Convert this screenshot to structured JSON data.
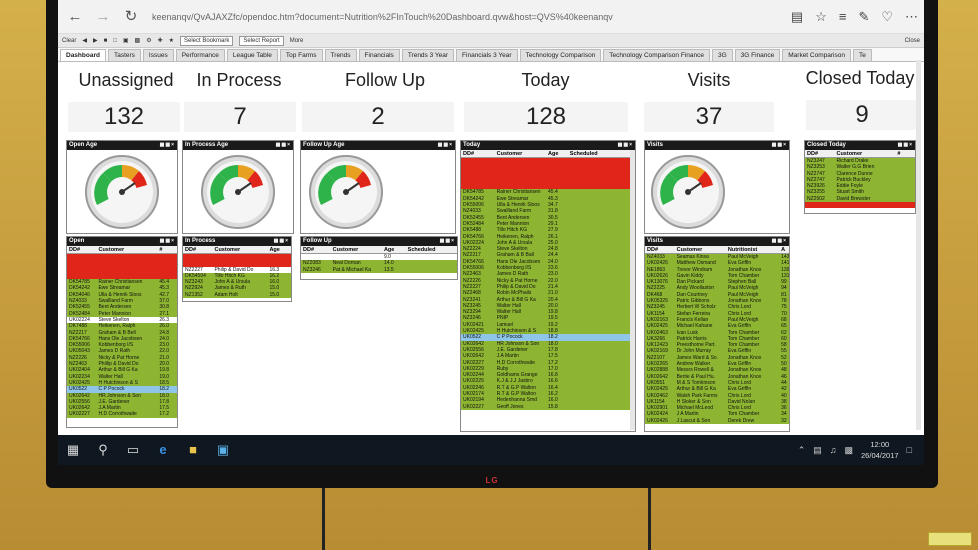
{
  "browser": {
    "url": "keenanqv/QvAJAXZfc/opendoc.htm?document=Nutrition%2FInTouch%20Dashboard.qvw&host=QVS%40keenanqv"
  },
  "toolbar": {
    "clear_label": "Clear",
    "bookmark_select": "Select Bookmark",
    "report_select": "Select Report",
    "more_label": "More",
    "close_label": "Close"
  },
  "tabs": [
    "Dashboard",
    "Tasters",
    "Issues",
    "Performance",
    "League Table",
    "Top Farms",
    "Trends",
    "Financials",
    "Trends 3 Year",
    "Financials 3 Year",
    "Technology Comparison",
    "Technology Comparison Finance",
    "3G",
    "3G Finance",
    "Market Comparison",
    "Te"
  ],
  "kpis": [
    {
      "label": "Unassigned",
      "value": "132"
    },
    {
      "label": "In Process",
      "value": "7"
    },
    {
      "label": "Follow Up",
      "value": "2"
    },
    {
      "label": "Today",
      "value": "128"
    },
    {
      "label": "Visits",
      "value": "37"
    },
    {
      "label": "Closed Today",
      "value": "9"
    }
  ],
  "gauges": {
    "open": {
      "title": "Open Age"
    },
    "inprocess": {
      "title": "In Process Age"
    },
    "followup": {
      "title": "Follow Up Age"
    },
    "visits": {
      "title": "Visits"
    }
  },
  "tables": {
    "open": {
      "title": "Open",
      "headers": [
        "DD#",
        "Customer",
        "#"
      ],
      "rows": [
        {
          "c": "r",
          "v": [
            "",
            "",
            ""
          ]
        },
        {
          "c": "r",
          "v": [
            "",
            "",
            ""
          ]
        },
        {
          "c": "r",
          "v": [
            "",
            "",
            ""
          ]
        },
        {
          "c": "r",
          "v": [
            "",
            "",
            ""
          ]
        },
        {
          "c": "g",
          "v": [
            "DK54785",
            "Rainer Christiansen",
            "45.4"
          ]
        },
        {
          "c": "g",
          "v": [
            "DK54242",
            "Ewe Streamar",
            "45.3"
          ]
        },
        {
          "c": "g",
          "v": [
            "DK54046",
            "Ulla & Henrik Sloos",
            "42.7"
          ]
        },
        {
          "c": "g",
          "v": [
            "NZ4033",
            "Swallland Farm",
            "37.0"
          ]
        },
        {
          "c": "g",
          "v": [
            "DK52455",
            "Bent Andersen",
            "30.8"
          ]
        },
        {
          "c": "g",
          "v": [
            "DK52484",
            "Peter Mannion",
            "27.1"
          ]
        },
        {
          "c": "w",
          "v": [
            "UK02224",
            "Steve Skelton",
            "26.3"
          ]
        },
        {
          "c": "g",
          "v": [
            "DK7488",
            "Heikenen, Ralph",
            "26.0"
          ]
        },
        {
          "c": "g",
          "v": [
            "NZ2217",
            "Graham & B Bell",
            "24.8"
          ]
        },
        {
          "c": "g",
          "v": [
            "DK54766",
            "Hans Ole Jacobsen",
            "24.0"
          ]
        },
        {
          "c": "g",
          "v": [
            "DK55006",
            "Kobbenborg I/S",
            "23.0"
          ]
        },
        {
          "c": "g",
          "v": [
            "UK05043",
            "James D Rath",
            "22.0"
          ]
        },
        {
          "c": "g",
          "v": [
            "NZ2226",
            "Nicky & Pat Horne",
            "21.0"
          ]
        },
        {
          "c": "g",
          "v": [
            "NZ2463",
            "Phillip & David Do",
            "20.0"
          ]
        },
        {
          "c": "g",
          "v": [
            "UK02404",
            "Arthur & Bill G Ka",
            "19.8"
          ]
        },
        {
          "c": "g",
          "v": [
            "UK02234",
            "Walter Hall",
            "19.0"
          ]
        },
        {
          "c": "g",
          "v": [
            "UK02425",
            "H Hutchinson & S",
            "18.5"
          ]
        },
        {
          "c": "b",
          "v": [
            "UK0522",
            "C P Pocock",
            "18.2"
          ]
        },
        {
          "c": "g",
          "v": [
            "UK02642",
            "HR Johnson & Son",
            "18.0"
          ]
        },
        {
          "c": "g",
          "v": [
            "UK02556",
            "J.E. Gardener",
            "17.8"
          ]
        },
        {
          "c": "g",
          "v": [
            "UK02642",
            "J.A Martin",
            "17.5"
          ]
        },
        {
          "c": "g",
          "v": [
            "UK02227",
            "H.D Corrothwaite",
            "17.2"
          ]
        }
      ]
    },
    "inprocess": {
      "title": "In Process",
      "headers": [
        "DD#",
        "Customer",
        "Age"
      ],
      "rows": [
        {
          "c": "r",
          "v": [
            "",
            "",
            ""
          ]
        },
        {
          "c": "r",
          "v": [
            "",
            "",
            ""
          ]
        },
        {
          "c": "w",
          "v": [
            "NZ2227",
            "Philip & David Do",
            "16.3"
          ]
        },
        {
          "c": "g",
          "v": [
            "DK54594",
            "Tillo Hitch KG",
            "16.2"
          ]
        },
        {
          "c": "g",
          "v": [
            "NZ3243",
            "John A & Ursula",
            "16.0"
          ]
        },
        {
          "c": "g",
          "v": [
            "NZ2924",
            "James & Ruth",
            "15.0"
          ]
        },
        {
          "c": "g",
          "v": [
            "NZ1352",
            "Adam Holt",
            "15.0"
          ]
        }
      ]
    },
    "followup": {
      "title": "Follow Up",
      "headers": [
        "DD#",
        "Customer",
        "Age",
        "Scheduled"
      ],
      "rows": [
        {
          "c": "w",
          "v": [
            "",
            "",
            "9.0",
            ""
          ]
        },
        {
          "c": "g",
          "v": [
            "NZ2083",
            "Neal Dornan",
            "14.0",
            ""
          ]
        },
        {
          "c": "g",
          "v": [
            "NZ3246",
            "Pat & Michael Ka",
            "13.5",
            ""
          ]
        }
      ]
    },
    "today": {
      "title": "Today",
      "headers": [
        "DD#",
        "Customer",
        "Age",
        "Scheduled"
      ],
      "rows": [
        {
          "c": "r",
          "v": [
            "",
            "",
            "",
            ""
          ]
        },
        {
          "c": "r",
          "v": [
            "",
            "",
            "",
            ""
          ]
        },
        {
          "c": "r",
          "v": [
            "",
            "",
            "",
            ""
          ]
        },
        {
          "c": "r",
          "v": [
            "",
            "",
            "",
            ""
          ]
        },
        {
          "c": "r",
          "v": [
            "",
            "",
            "",
            ""
          ]
        },
        {
          "c": "g",
          "v": [
            "DK54785",
            "Rainer Christiansen",
            "45.4",
            ""
          ]
        },
        {
          "c": "g",
          "v": [
            "DK54242",
            "Ewe Streamar",
            "45.3",
            ""
          ]
        },
        {
          "c": "g",
          "v": [
            "DK55006",
            "Ulla & Henrik Sloos",
            "34.7",
            ""
          ]
        },
        {
          "c": "g",
          "v": [
            "NZ4033",
            "Swallland Farm",
            "31.8",
            ""
          ]
        },
        {
          "c": "g",
          "v": [
            "DK52455",
            "Bent Andersen",
            "30.5",
            ""
          ]
        },
        {
          "c": "g",
          "v": [
            "DK52484",
            "Peter Mannion",
            "29.1",
            ""
          ]
        },
        {
          "c": "g",
          "v": [
            "DK5488",
            "Tillo Hitch KG",
            "27.9",
            ""
          ]
        },
        {
          "c": "g",
          "v": [
            "DK54766",
            "Heikenen, Ralph",
            "26.1",
            ""
          ]
        },
        {
          "c": "g",
          "v": [
            "UK02224",
            "John A & Ursula",
            "25.0",
            ""
          ]
        },
        {
          "c": "g",
          "v": [
            "NZ2224",
            "Steve Skelton",
            "24.8",
            ""
          ]
        },
        {
          "c": "g",
          "v": [
            "NZ2217",
            "Graham & B Ball",
            "24.4",
            ""
          ]
        },
        {
          "c": "g",
          "v": [
            "DK54766",
            "Hans Ole Jacobsen",
            "24.0",
            ""
          ]
        },
        {
          "c": "g",
          "v": [
            "DK55006",
            "Kobbenborg I/S",
            "23.6",
            ""
          ]
        },
        {
          "c": "g",
          "v": [
            "NZ2463",
            "James D Rath",
            "23.0",
            ""
          ]
        },
        {
          "c": "g",
          "v": [
            "NZ2226",
            "Nicky & Pat Horne",
            "22.0",
            ""
          ]
        },
        {
          "c": "g",
          "v": [
            "NZ2227",
            "Philip & David Do",
            "21.4",
            ""
          ]
        },
        {
          "c": "g",
          "v": [
            "NZ2468",
            "Robin McPhails",
            "21.0",
            ""
          ]
        },
        {
          "c": "g",
          "v": [
            "NZ3241",
            "Arthur & Bill G Ka",
            "20.4",
            ""
          ]
        },
        {
          "c": "g",
          "v": [
            "NZ3245",
            "Walter Hall",
            "20.0",
            ""
          ]
        },
        {
          "c": "g",
          "v": [
            "NZ3294",
            "Walter Hall",
            "19.8",
            ""
          ]
        },
        {
          "c": "g",
          "v": [
            "NZ3246",
            "PNIP",
            "19.5",
            ""
          ]
        },
        {
          "c": "g",
          "v": [
            "UK02421",
            "Lamuel",
            "19.2",
            ""
          ]
        },
        {
          "c": "g",
          "v": [
            "UK02425",
            "H Hutchinson & S",
            "18.8",
            ""
          ]
        },
        {
          "c": "b",
          "v": [
            "UK0522",
            "C P Pocock",
            "18.2",
            ""
          ]
        },
        {
          "c": "g",
          "v": [
            "UK02642",
            "HR Johnson & Son",
            "18.0",
            ""
          ]
        },
        {
          "c": "g",
          "v": [
            "UK02556",
            "J.E. Gardener",
            "17.8",
            ""
          ]
        },
        {
          "c": "g",
          "v": [
            "UK02642",
            "J.A Martin",
            "17.5",
            ""
          ]
        },
        {
          "c": "g",
          "v": [
            "UK02227",
            "H.D Corrothwaite",
            "17.2",
            ""
          ]
        },
        {
          "c": "g",
          "v": [
            "UK02229",
            "Ruby",
            "17.0",
            ""
          ]
        },
        {
          "c": "g",
          "v": [
            "UK02244",
            "Goldhams Grange",
            "16.8",
            ""
          ]
        },
        {
          "c": "g",
          "v": [
            "UK02225",
            "K.J & J.J Jasbro",
            "16.6",
            ""
          ]
        },
        {
          "c": "g",
          "v": [
            "UK02246",
            "R.T & G.P Walton",
            "16.4",
            ""
          ]
        },
        {
          "c": "g",
          "v": [
            "UK02174",
            "R.T & G.P Walton",
            "16.2",
            ""
          ]
        },
        {
          "c": "g",
          "v": [
            "UK02194",
            "Hedenhanna Smd",
            "16.0",
            ""
          ]
        },
        {
          "c": "g",
          "v": [
            "UK02227",
            "Geoff Jones",
            "15.8",
            ""
          ]
        }
      ]
    },
    "visits": {
      "title": "Visits",
      "headers": [
        "DD#",
        "Customer",
        "Nutritionist",
        "A"
      ],
      "rows": [
        {
          "c": "g",
          "v": [
            "NZ4033",
            "Seamus Kinsa",
            "Paul McVeigh",
            "143"
          ]
        },
        {
          "c": "g",
          "v": [
            "UK02426",
            "Matthew Osmand",
            "Eva Griffin",
            "141"
          ]
        },
        {
          "c": "g",
          "v": [
            "NE1863",
            "Trevor Windram",
            "Jonathan Knox",
            "139"
          ]
        },
        {
          "c": "g",
          "v": [
            "UK02626",
            "Gavin Kiddy",
            "Tom Chamber",
            "131"
          ]
        },
        {
          "c": "g",
          "v": [
            "UK13076",
            "Dan Pickard",
            "Stephen Ball",
            "99"
          ]
        },
        {
          "c": "g",
          "v": [
            "NZ2225",
            "Andy Woollaston",
            "Paul McVeigh",
            "94"
          ]
        },
        {
          "c": "g",
          "v": [
            "DK468",
            "Dan Courtney",
            "Paul McVeigh",
            "81"
          ]
        },
        {
          "c": "g",
          "v": [
            "UK05325",
            "Patric Gibbons",
            "Jonathan Knox",
            "78"
          ]
        },
        {
          "c": "g",
          "v": [
            "NZ3245",
            "Herbert W Scholz",
            "Chris Lord",
            "75"
          ]
        },
        {
          "c": "g",
          "v": [
            "UK1154",
            "Stefan Ferreira",
            "Chris Lord",
            "70"
          ]
        },
        {
          "c": "g",
          "v": [
            "UK02163",
            "Francis Kellan",
            "Paul McVeigh",
            "68"
          ]
        },
        {
          "c": "g",
          "v": [
            "UK02425",
            "Michael Kahane",
            "Eva Griffin",
            "65"
          ]
        },
        {
          "c": "g",
          "v": [
            "UK02463",
            "Ivan Lusk",
            "Tom Chamber",
            "62"
          ]
        },
        {
          "c": "g",
          "v": [
            "UK3266",
            "Patrick Harris",
            "Tom Chamber",
            "60"
          ]
        },
        {
          "c": "g",
          "v": [
            "UK12423",
            "Preesthorne Part.",
            "Tom Chamber",
            "58"
          ]
        },
        {
          "c": "g",
          "v": [
            "UK02169",
            "Dr John Murray",
            "Eva Griffin",
            "55"
          ]
        },
        {
          "c": "g",
          "v": [
            "NZ2107",
            "James Ward & So.",
            "Jonathan Knox",
            "52"
          ]
        },
        {
          "c": "g",
          "v": [
            "UK02265",
            "Andrew Walker",
            "Eva Griffin",
            "50"
          ]
        },
        {
          "c": "g",
          "v": [
            "UK02888",
            "Messrs Rowell &",
            "Jonathan Knox",
            "48"
          ]
        },
        {
          "c": "g",
          "v": [
            "UK02642",
            "Bertie & Paul Hu.",
            "Jonathan Knox",
            "46"
          ]
        },
        {
          "c": "g",
          "v": [
            "UK0551",
            "M & S Tomkinson",
            "Chris Lord",
            "44"
          ]
        },
        {
          "c": "g",
          "v": [
            "UK02425",
            "Arthur & Bill G Ka",
            "Eva Griffin",
            "42"
          ]
        },
        {
          "c": "g",
          "v": [
            "UK02462",
            "Walsh Park Farms",
            "Chris Lord",
            "40"
          ]
        },
        {
          "c": "g",
          "v": [
            "UK1154",
            "H Sloker & Son",
            "David Nolan",
            "38"
          ]
        },
        {
          "c": "g",
          "v": [
            "UK02901",
            "Michael McLeod",
            "Chris Lord",
            "36"
          ]
        },
        {
          "c": "g",
          "v": [
            "UK02424",
            "J A Martin",
            "Tom Chamber",
            "34"
          ]
        },
        {
          "c": "g",
          "v": [
            "UK02426",
            "J Lascut & Son",
            "Derek Drew",
            "32"
          ]
        }
      ]
    },
    "closed": {
      "title": "Closed Today",
      "headers": [
        "DD#",
        "Customer",
        "#"
      ],
      "rows": [
        {
          "c": "g",
          "v": [
            "NZ3247",
            "Richard Drake",
            ""
          ]
        },
        {
          "c": "g",
          "v": [
            "NZ3253",
            "Walter G.G Brien",
            ""
          ]
        },
        {
          "c": "g",
          "v": [
            "NZ2747",
            "Clarence Dunne",
            ""
          ]
        },
        {
          "c": "g",
          "v": [
            "NZ2747",
            "Patrick Buckley",
            ""
          ]
        },
        {
          "c": "g",
          "v": [
            "NZ3926",
            "Eddie Foyle",
            ""
          ]
        },
        {
          "c": "g",
          "v": [
            "NZ3255",
            "Stuart Smith",
            ""
          ]
        },
        {
          "c": "g",
          "v": [
            "NZ2502",
            "David Brewster",
            ""
          ]
        },
        {
          "c": "r",
          "v": [
            "",
            "",
            ""
          ]
        }
      ]
    }
  },
  "taskbar": {
    "time": "12:00",
    "date": "26/04/2017"
  },
  "brand": {
    "tv_logo": "LG"
  }
}
